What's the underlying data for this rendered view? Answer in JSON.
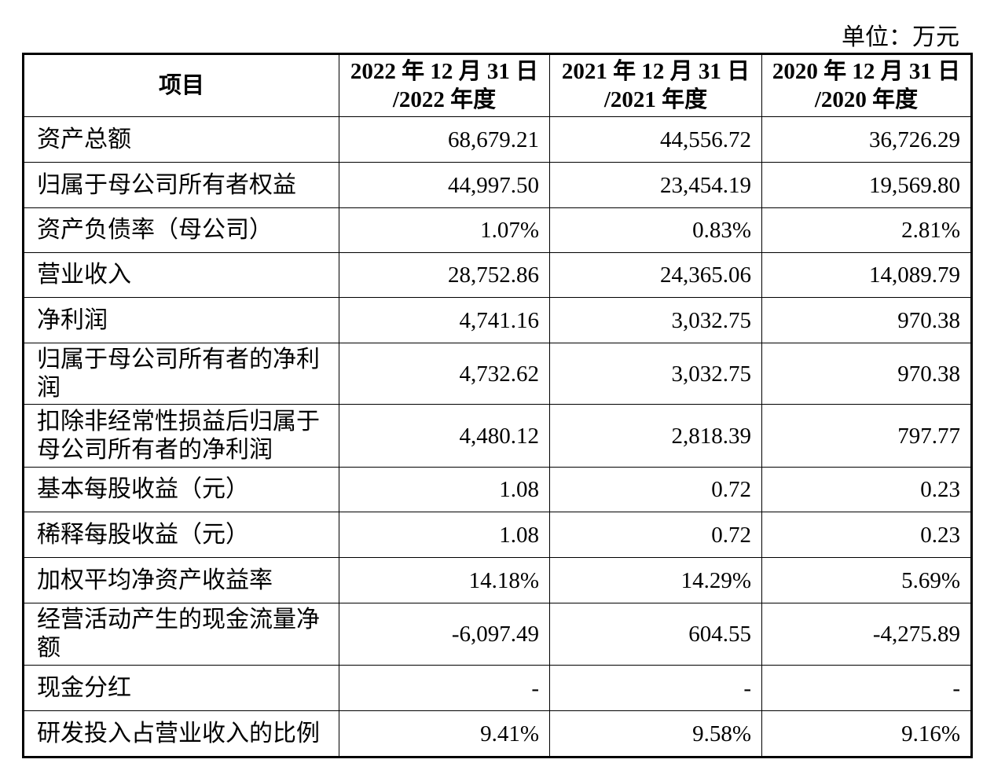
{
  "unit": "单位：万元",
  "table": {
    "header": [
      [
        "项目"
      ],
      [
        "2022 年 12 月 31 日",
        "/2022 年度"
      ],
      [
        "2021 年 12 月 31 日",
        "/2021 年度"
      ],
      [
        "2020 年 12 月 31 日",
        "/2020 年度"
      ]
    ],
    "rows": [
      [
        "资产总额",
        "68,679.21",
        "44,556.72",
        "36,726.29"
      ],
      [
        "归属于母公司所有者权益",
        "44,997.50",
        "23,454.19",
        "19,569.80"
      ],
      [
        "资产负债率（母公司）",
        "1.07%",
        "0.83%",
        "2.81%"
      ],
      [
        "营业收入",
        "28,752.86",
        "24,365.06",
        "14,089.79"
      ],
      [
        "净利润",
        "4,741.16",
        "3,032.75",
        "970.38"
      ],
      [
        "归属于母公司所有者的净利润",
        "4,732.62",
        "3,032.75",
        "970.38"
      ],
      [
        "扣除非经常性损益后归属于母公司所有者的净利润",
        "4,480.12",
        "2,818.39",
        "797.77"
      ],
      [
        "基本每股收益（元）",
        "1.08",
        "0.72",
        "0.23"
      ],
      [
        "稀释每股收益（元）",
        "1.08",
        "0.72",
        "0.23"
      ],
      [
        "加权平均净资产收益率",
        "14.18%",
        "14.29%",
        "5.69%"
      ],
      [
        "经营活动产生的现金流量净额",
        "-6,097.49",
        "604.55",
        "-4,275.89"
      ],
      [
        "现金分红",
        "-",
        "-",
        "-"
      ],
      [
        "研发投入占营业收入的比例",
        "9.41%",
        "9.58%",
        "9.16%"
      ]
    ]
  }
}
